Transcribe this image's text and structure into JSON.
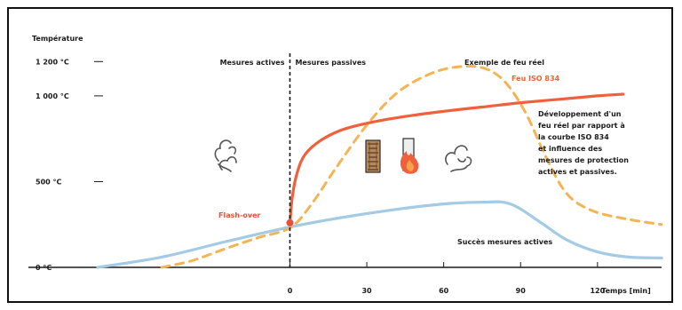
{
  "chart_data": {
    "type": "line",
    "ylabel": "Température",
    "xlabel": "Temps [min]",
    "y_ticks": [
      {
        "label": "1 200 °C",
        "value": 1200
      },
      {
        "label": "1 000 °C",
        "value": 1000
      },
      {
        "label": "500 °C",
        "value": 500
      },
      {
        "label": "0 °C",
        "value": 0
      }
    ],
    "x_ticks": [
      0,
      30,
      60,
      90,
      120
    ],
    "xlim": [
      -75,
      145
    ],
    "ylim": [
      0,
      1300
    ],
    "series": [
      {
        "name": "Feu ISO 834",
        "color": "#f0603c",
        "style": "solid",
        "points": [
          [
            0,
            260
          ],
          [
            1,
            420
          ],
          [
            3,
            560
          ],
          [
            6,
            660
          ],
          [
            12,
            740
          ],
          [
            20,
            800
          ],
          [
            30,
            840
          ],
          [
            45,
            880
          ],
          [
            60,
            910
          ],
          [
            75,
            935
          ],
          [
            90,
            960
          ],
          [
            105,
            980
          ],
          [
            120,
            1000
          ],
          [
            130,
            1010
          ]
        ]
      },
      {
        "name": "Exemple de feu réel",
        "color": "#f5b453",
        "style": "dashed",
        "points": [
          [
            -50,
            0
          ],
          [
            -38,
            40
          ],
          [
            -25,
            110
          ],
          [
            -12,
            175
          ],
          [
            0,
            230
          ],
          [
            8,
            360
          ],
          [
            18,
            580
          ],
          [
            30,
            830
          ],
          [
            42,
            1020
          ],
          [
            55,
            1130
          ],
          [
            66,
            1170
          ],
          [
            76,
            1160
          ],
          [
            84,
            1080
          ],
          [
            92,
            900
          ],
          [
            100,
            640
          ],
          [
            108,
            430
          ],
          [
            118,
            330
          ],
          [
            132,
            280
          ],
          [
            145,
            250
          ]
        ]
      },
      {
        "name": "Succès mesures actives",
        "color": "#a3cbe6",
        "style": "solid",
        "points": [
          [
            -75,
            0
          ],
          [
            -50,
            60
          ],
          [
            -25,
            150
          ],
          [
            0,
            235
          ],
          [
            20,
            290
          ],
          [
            40,
            335
          ],
          [
            60,
            370
          ],
          [
            75,
            380
          ],
          [
            86,
            370
          ],
          [
            98,
            260
          ],
          [
            108,
            160
          ],
          [
            120,
            90
          ],
          [
            132,
            60
          ],
          [
            145,
            55
          ]
        ]
      }
    ],
    "annotations": {
      "active_label": "Mesures actives",
      "passive_label": "Mesures passives",
      "real_fire_label": "Exemple de feu réel",
      "iso_label": "Feu ISO 834",
      "flashover_label": "Flash-over",
      "success_label": "Succès mesures actives",
      "description": [
        "Développement d'un",
        "feu réel par rapport à",
        "la courbe ISO 834",
        "et influence des",
        "mesures de protection",
        "actives et passives."
      ]
    },
    "colors": {
      "iso": "#f0603c",
      "real": "#f5b453",
      "active": "#a3cbe6",
      "axis": "#1a1a1a",
      "flashover": "#e8503a"
    },
    "icons": [
      "smoke-icon-left",
      "wood-wall-icon",
      "fire-icon",
      "smoke-icon-right"
    ]
  }
}
